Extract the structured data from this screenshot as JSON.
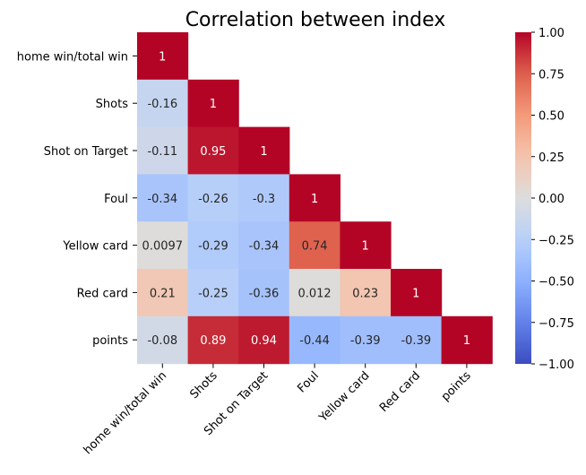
{
  "chart_data": {
    "type": "heatmap",
    "title": "Correlation between index",
    "variables": [
      "home win/total win",
      "Shots",
      "Shot on Target",
      "Foul",
      "Yellow card",
      "Red card",
      "points"
    ],
    "matrix": [
      [
        1
      ],
      [
        -0.16,
        1
      ],
      [
        -0.11,
        0.95,
        1
      ],
      [
        -0.34,
        -0.26,
        -0.3,
        1
      ],
      [
        0.0097,
        -0.29,
        -0.34,
        0.74,
        1
      ],
      [
        0.21,
        -0.25,
        -0.36,
        0.012,
        0.23,
        1
      ],
      [
        -0.08,
        0.89,
        0.94,
        -0.44,
        -0.39,
        -0.39,
        1
      ]
    ],
    "value_labels": [
      [
        "1"
      ],
      [
        "-0.16",
        "1"
      ],
      [
        "-0.11",
        "0.95",
        "1"
      ],
      [
        "-0.34",
        "-0.26",
        "-0.3",
        "1"
      ],
      [
        "0.0097",
        "-0.29",
        "-0.34",
        "0.74",
        "1"
      ],
      [
        "0.21",
        "-0.25",
        "-0.36",
        "0.012",
        "0.23",
        "1"
      ],
      [
        "-0.08",
        "0.89",
        "0.94",
        "-0.44",
        "-0.39",
        "-0.39",
        "1"
      ]
    ],
    "mask": "upper-triangle",
    "colormap": "coolwarm",
    "vmin": -1,
    "vmax": 1,
    "colorbar_ticks": [
      1.0,
      0.75,
      0.5,
      0.25,
      0.0,
      -0.25,
      -0.5,
      -0.75,
      -1.0
    ],
    "colorbar_tick_labels": [
      "1.00",
      "0.75",
      "0.50",
      "0.25",
      "0.00",
      "−0.25",
      "−0.50",
      "−0.75",
      "−1.00"
    ],
    "colors": {
      "coolwarm_low": "#3b4cc0",
      "coolwarm_mid": "#dddddd",
      "coolwarm_high": "#b40426",
      "label_light": "#ffffff",
      "label_dark": "#262626"
    },
    "x_tick_rotation": "45 degrees",
    "colorbar_position": "right"
  }
}
